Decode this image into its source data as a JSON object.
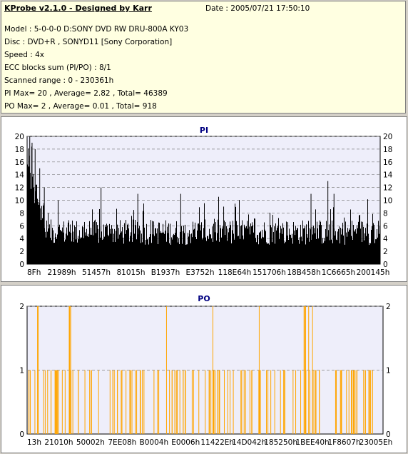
{
  "header": {
    "app_title": "KProbe v2.1.0 - Designed by Karr",
    "date": "Date : 2005/07/21 17:50:10",
    "lines": [
      "Model : 5-0-0-0 D:SONY    DVD RW DRU-800A  KY03",
      "Disc : DVD+R , SONYD11 [Sony Corporation]",
      "Speed : 4x",
      "ECC blocks sum (PI/PO) : 8/1",
      "Scanned range : 0 - 230361h",
      "PI Max= 20 , Average= 2.82 , Total= 46389",
      "PO Max= 2 , Average= 0.01 , Total= 918"
    ]
  },
  "colors": {
    "pi_bar": "#000000",
    "po_bar": "#ffa500",
    "plot_bg": "#eeeefa",
    "grid": "#808080",
    "title": "#000080"
  },
  "chart_data": [
    {
      "type": "bar",
      "title": "PI",
      "ylim": [
        0,
        20
      ],
      "yticks": [
        0,
        2,
        4,
        6,
        8,
        10,
        12,
        14,
        16,
        18,
        20
      ],
      "xticks": [
        "8Fh",
        "21989h",
        "51457h",
        "81015h",
        "B1937h",
        "E3752h",
        "118E64h",
        "151706h",
        "18B458h",
        "1C6665h",
        "200145h"
      ],
      "xlim": [
        0,
        230361
      ],
      "grid": "dashed",
      "peaks": [
        {
          "x": 1500,
          "y": 20
        },
        {
          "x": 3000,
          "y": 19
        },
        {
          "x": 5000,
          "y": 18
        },
        {
          "x": 8000,
          "y": 15
        },
        {
          "x": 11000,
          "y": 12
        },
        {
          "x": 20000,
          "y": 10
        },
        {
          "x": 48000,
          "y": 12
        },
        {
          "x": 72000,
          "y": 11
        },
        {
          "x": 100000,
          "y": 11
        },
        {
          "x": 128000,
          "y": 9
        },
        {
          "x": 185000,
          "y": 11
        },
        {
          "x": 196000,
          "y": 13
        },
        {
          "x": 200000,
          "y": 11
        }
      ],
      "typical_range": [
        3,
        7
      ]
    },
    {
      "type": "bar",
      "title": "PO",
      "ylim": [
        0,
        2
      ],
      "yticks": [
        0,
        1,
        2
      ],
      "xticks": [
        "13h",
        "21010h",
        "50002h",
        "7EE08h",
        "B0004h",
        "E0006h",
        "11422Eh",
        "14D042h",
        "185250h",
        "1BEE40h",
        "1F8607h",
        "23005Eh"
      ],
      "xlim": [
        0,
        230361
      ],
      "grid": "dashed",
      "value_2_at": [
        6500,
        7000,
        27000,
        27400,
        28000,
        90000,
        120000,
        150000,
        179000,
        179500,
        180000,
        182000,
        184500
      ]
    }
  ]
}
